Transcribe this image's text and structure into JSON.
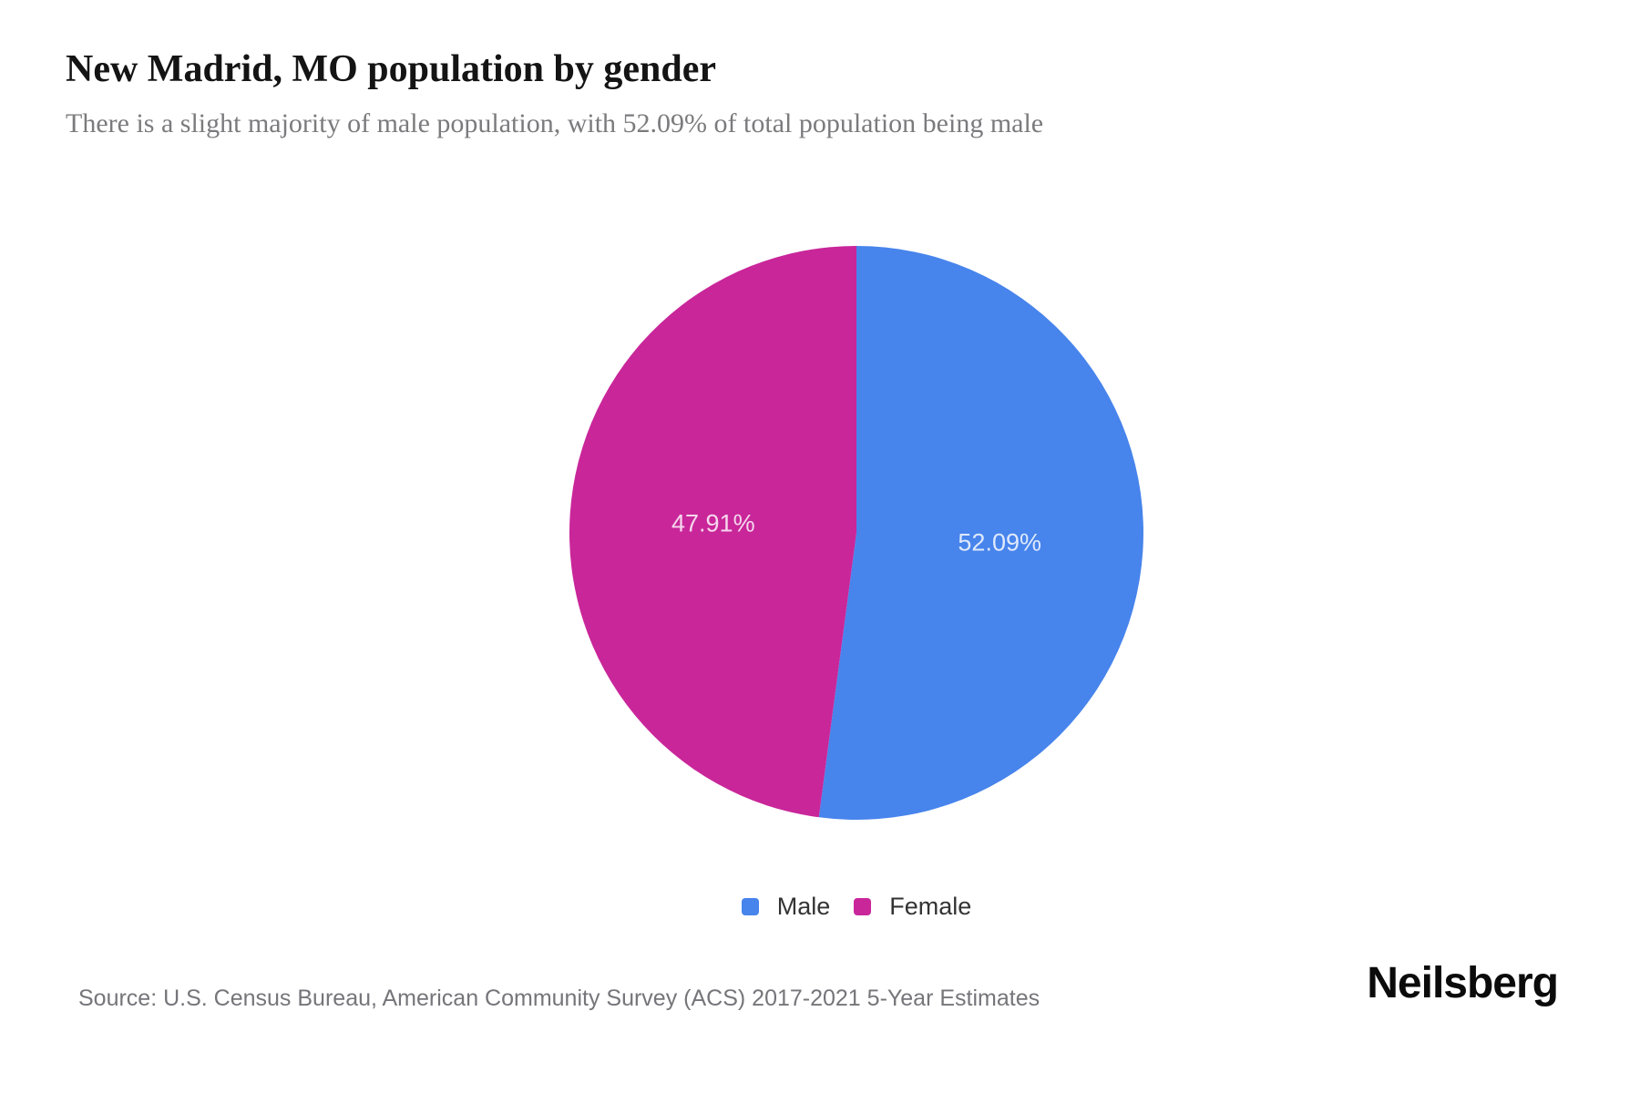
{
  "header": {
    "title": "New Madrid, MO population by gender",
    "subtitle": "There is a slight majority of male population, with 52.09% of total population being male"
  },
  "chart_data": {
    "type": "pie",
    "title": "New Madrid, MO population by gender",
    "categories": [
      "Male",
      "Female"
    ],
    "values": [
      52.09,
      47.91
    ],
    "labels": [
      "52.09%",
      "47.91%"
    ],
    "colors": [
      "#4784EC",
      "#C9269A"
    ],
    "start_angle_deg": 0,
    "direction": "clockwise",
    "label_radius_ratio": 0.5,
    "legend_position": "bottom"
  },
  "legend": {
    "items": [
      {
        "label": "Male",
        "color": "#4784EC"
      },
      {
        "label": "Female",
        "color": "#C9269A"
      }
    ]
  },
  "footer": {
    "source": "Source: U.S. Census Bureau, American Community Survey (ACS) 2017-2021 5-Year Estimates",
    "brand": "Neilsberg"
  }
}
